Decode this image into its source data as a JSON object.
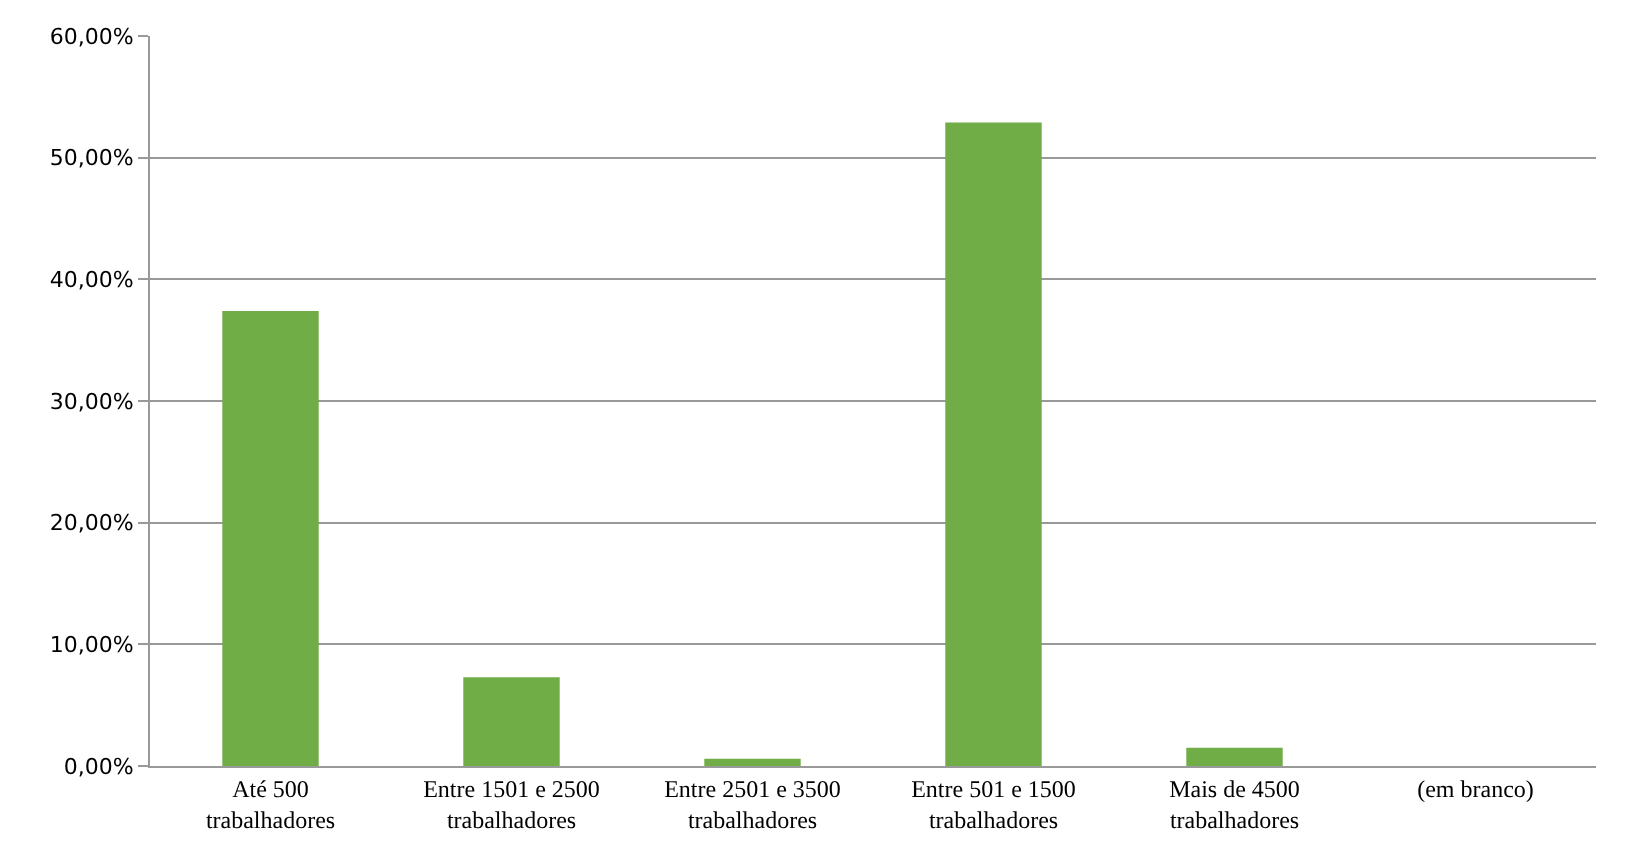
{
  "chart_data": {
    "type": "bar",
    "categories": [
      "Até 500 trabalhadores",
      "Entre 1501 e 2500 trabalhadores",
      "Entre 2501 e 3500 trabalhadores",
      "Entre 501 e 1500 trabalhadores",
      "Mais de 4500 trabalhadores",
      "(em branco)"
    ],
    "values": [
      37.4,
      7.3,
      0.6,
      52.9,
      1.5,
      0
    ],
    "color": "#70ad47",
    "ylim": [
      0,
      60
    ],
    "yticks": [
      {
        "value": 0,
        "label": "0,00%"
      },
      {
        "value": 10,
        "label": "10,00%"
      },
      {
        "value": 20,
        "label": "20,00%"
      },
      {
        "value": 30,
        "label": "30,00%"
      },
      {
        "value": 40,
        "label": "40,00%"
      },
      {
        "value": 50,
        "label": "50,00%"
      },
      {
        "value": 60,
        "label": "60,00%"
      }
    ],
    "grid": "y",
    "legend": false
  }
}
